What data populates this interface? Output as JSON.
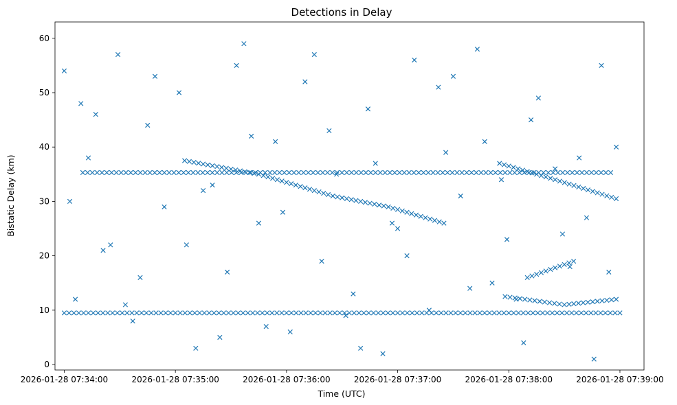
{
  "chart_data": {
    "type": "scatter",
    "title": "Detections in Delay",
    "xlabel": "Time (UTC)",
    "ylabel": "Bistatic Delay (km)",
    "x_tick_labels": [
      "2026-01-28 07:34:00",
      "2026-01-28 07:35:00",
      "2026-01-28 07:36:00",
      "2026-01-28 07:37:00",
      "2026-01-28 07:38:00",
      "2026-01-28 07:39:00"
    ],
    "y_ticks": [
      0,
      10,
      20,
      30,
      40,
      50,
      60
    ],
    "xlim": [
      "2026-01-28 07:33:55",
      "2026-01-28 07:39:13"
    ],
    "ylim": [
      -1,
      63
    ],
    "marker": "x",
    "color": "#1f77b4",
    "grid": false,
    "x": [
      "2026-01-28 07:34:00",
      "2026-01-28 07:34:06",
      "2026-01-28 07:34:13",
      "2026-01-28 07:34:21",
      "2026-01-28 07:34:29",
      "2026-01-28 07:34:37",
      "2026-01-28 07:34:45",
      "2026-01-28 07:34:54",
      "2026-01-28 07:35:02",
      "2026-01-28 07:35:11",
      "2026-01-28 07:35:20",
      "2026-01-28 07:35:28",
      "2026-01-28 07:35:37",
      "2026-01-28 07:35:45",
      "2026-01-28 07:35:54",
      "2026-01-28 07:36:02",
      "2026-01-28 07:36:10",
      "2026-01-28 07:36:19",
      "2026-01-28 07:36:27",
      "2026-01-28 07:36:36",
      "2026-01-28 07:36:44",
      "2026-01-28 07:36:52",
      "2026-01-28 07:37:00",
      "2026-01-28 07:37:09",
      "2026-01-28 07:37:17",
      "2026-01-28 07:37:26",
      "2026-01-28 07:37:34",
      "2026-01-28 07:37:43",
      "2026-01-28 07:37:51",
      "2026-01-28 07:37:59",
      "2026-01-28 07:38:08",
      "2026-01-28 07:38:16",
      "2026-01-28 07:38:25",
      "2026-01-28 07:38:33",
      "2026-01-28 07:38:42",
      "2026-01-28 07:38:50",
      "2026-01-28 07:38:58",
      "2026-01-28 07:34:03",
      "2026-01-28 07:34:17",
      "2026-01-28 07:34:33",
      "2026-01-28 07:34:49",
      "2026-01-28 07:35:06",
      "2026-01-28 07:35:24",
      "2026-01-28 07:35:41",
      "2026-01-28 07:35:58",
      "2026-01-28 07:36:15",
      "2026-01-28 07:36:32",
      "2026-01-28 07:36:48",
      "2026-01-28 07:37:05",
      "2026-01-28 07:37:22",
      "2026-01-28 07:37:39",
      "2026-01-28 07:37:56",
      "2026-01-28 07:38:12",
      "2026-01-28 07:38:29",
      "2026-01-28 07:38:46",
      "2026-01-28 07:34:09",
      "2026-01-28 07:34:41",
      "2026-01-28 07:35:15",
      "2026-01-28 07:35:49",
      "2026-01-28 07:36:23",
      "2026-01-28 07:36:57",
      "2026-01-28 07:37:30",
      "2026-01-28 07:38:04",
      "2026-01-28 07:38:38",
      "2026-01-28 07:34:25",
      "2026-01-28 07:35:33",
      "2026-01-28 07:36:40",
      "2026-01-28 07:37:47",
      "2026-01-28 07:38:54"
    ],
    "y": [
      54,
      12,
      38,
      21,
      57,
      8,
      44,
      29,
      50,
      3,
      33,
      17,
      59,
      26,
      41,
      6,
      52,
      19,
      35,
      13,
      47,
      2,
      25,
      56,
      10,
      39,
      31,
      58,
      15,
      23,
      4,
      49,
      36,
      18,
      27,
      55,
      40,
      30,
      46,
      11,
      53,
      22,
      5,
      42,
      28,
      57,
      9,
      37,
      20,
      51,
      14,
      34,
      45,
      24,
      1,
      48,
      16,
      32,
      7,
      43,
      26,
      53,
      12,
      38,
      22,
      55,
      3,
      41,
      17
    ],
    "tracks": [
      {
        "x": [
          "2026-01-28 07:34:00",
          "2026-01-28 07:39:00"
        ],
        "y": [
          9.5,
          9.5
        ]
      },
      {
        "x": [
          "2026-01-28 07:34:10",
          "2026-01-28 07:38:55"
        ],
        "y": [
          35.3,
          35.3
        ]
      },
      {
        "x": [
          "2026-01-28 07:35:05",
          "2026-01-28 07:35:45",
          "2026-01-28 07:36:25",
          "2026-01-28 07:36:55",
          "2026-01-28 07:37:25"
        ],
        "y": [
          37.5,
          35,
          31,
          29,
          26
        ]
      },
      {
        "x": [
          "2026-01-28 07:37:55",
          "2026-01-28 07:38:25",
          "2026-01-28 07:38:58"
        ],
        "y": [
          37,
          34,
          30.5
        ]
      },
      {
        "x": [
          "2026-01-28 07:37:58",
          "2026-01-28 07:38:30",
          "2026-01-28 07:38:58"
        ],
        "y": [
          12.5,
          11,
          12
        ]
      },
      {
        "x": [
          "2026-01-28 07:38:10",
          "2026-01-28 07:38:35"
        ],
        "y": [
          16,
          19
        ]
      }
    ]
  }
}
